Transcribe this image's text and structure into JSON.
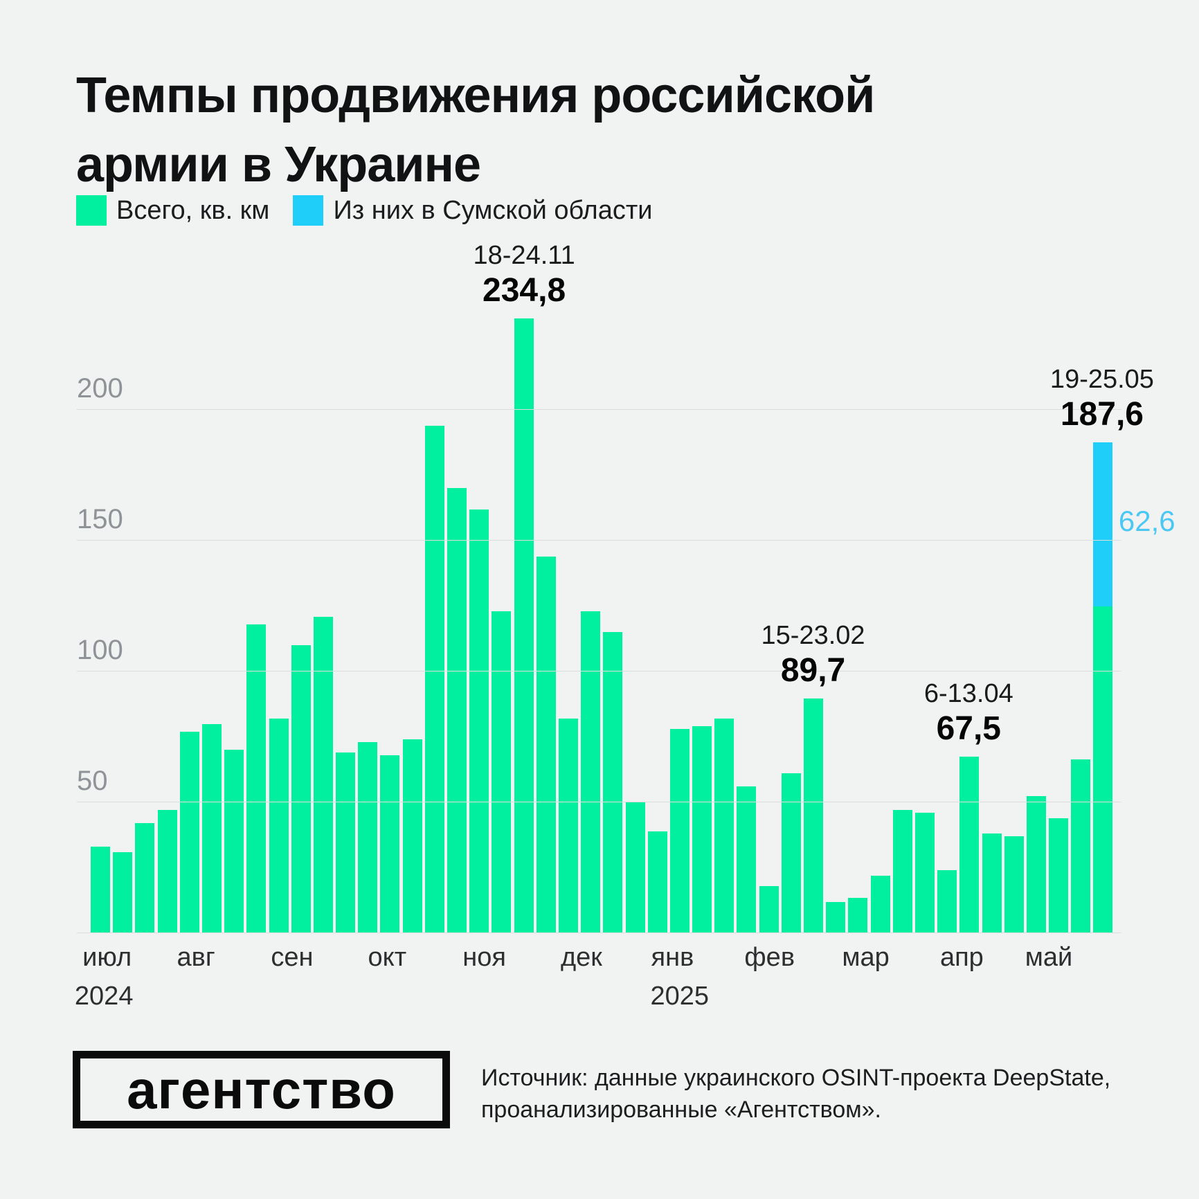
{
  "title": {
    "line1": "Темпы продвижения российской",
    "line2": "армии в Украине"
  },
  "legend": {
    "total": {
      "label": "Всего, кв. км",
      "color": "#00F0A0"
    },
    "sumy": {
      "label": "Из них в Сумской области",
      "color": "#1FCFFA"
    }
  },
  "colors": {
    "background": "#F1F2F2",
    "bar_green": "#00F0A0",
    "bar_blue": "#1FCFFA",
    "sumy_label_blue": "#4BC7F3",
    "gridline": "#DBDEDE",
    "tick_label": "#8F9397"
  },
  "chart_data": {
    "type": "bar",
    "title": "Темпы продвижения российской армии в Украине",
    "unit": "кв. км",
    "ylim": [
      0,
      240
    ],
    "yticks": [
      50,
      100,
      150,
      200
    ],
    "grid": true,
    "legend_position": "top-left",
    "series": [
      {
        "name": "Всего, кв. км",
        "color": "#00F0A0",
        "values": [
          33,
          31,
          42,
          47,
          77,
          80,
          70,
          118,
          82,
          110,
          121,
          69,
          73,
          68,
          74,
          194,
          170,
          162,
          123,
          234.8,
          144,
          82,
          123,
          115,
          50,
          39,
          78,
          79,
          82,
          56,
          18,
          61,
          89.7,
          12,
          13.5,
          22,
          47,
          46,
          24,
          67.5,
          38,
          37,
          52.5,
          44,
          66.5,
          187.6
        ]
      },
      {
        "name": "Из них в Сумской области",
        "color": "#1FCFFA",
        "note": "segment shown only on last bar",
        "last_bar_value": 62.6
      }
    ],
    "annotations": [
      {
        "bar": 20,
        "date": "18-24.11",
        "value": "234,8"
      },
      {
        "bar": 33,
        "date": "15-23.02",
        "value": "89,7"
      },
      {
        "bar": 40,
        "date": "6-13.04",
        "value": "67,5"
      },
      {
        "bar": 46,
        "date": "19-25.05",
        "value": "187,6"
      }
    ],
    "sumy_segment_label": "62,6",
    "months": [
      {
        "label": "июл",
        "pct": 1.6
      },
      {
        "label": "авг",
        "pct": 10.3
      },
      {
        "label": "сен",
        "pct": 19.7
      },
      {
        "label": "окт",
        "pct": 29.0
      },
      {
        "label": "ноя",
        "pct": 38.5
      },
      {
        "label": "дек",
        "pct": 48.0
      },
      {
        "label": "янв",
        "pct": 56.9
      },
      {
        "label": "фев",
        "pct": 66.4
      },
      {
        "label": "мар",
        "pct": 75.8
      },
      {
        "label": "апр",
        "pct": 85.2
      },
      {
        "label": "май",
        "pct": 93.7
      }
    ],
    "years": [
      {
        "label": "2024",
        "pct": 1.3
      },
      {
        "label": "2025",
        "pct": 57.6
      }
    ]
  },
  "footer": {
    "logo": "агентство",
    "source_line1": "Источник: данные украинского OSINT-проекта DeepState,",
    "source_line2": "проанализированные «Агентством»."
  }
}
